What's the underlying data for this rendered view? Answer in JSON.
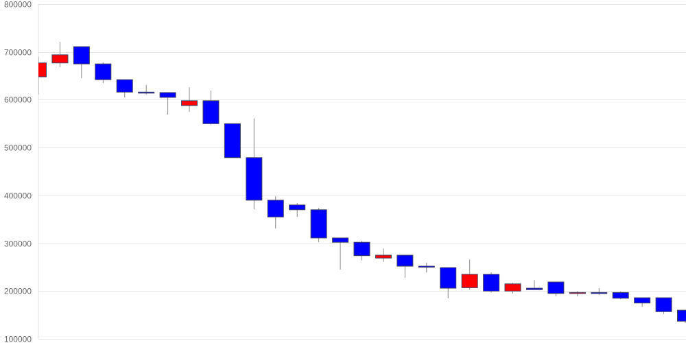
{
  "chart_data": {
    "type": "candlestick",
    "title": "",
    "xlabel": "",
    "ylabel": "",
    "ylim": [
      100000,
      800000
    ],
    "yticks": [
      "100000",
      "200000",
      "300000",
      "400000",
      "500000",
      "600000",
      "700000",
      "800000"
    ],
    "grid": true,
    "colors": {
      "up": "#ff0000",
      "down": "#0000ff",
      "wick": "#888888",
      "grid": "#e6e6e6"
    },
    "candles": [
      {
        "o": 648000,
        "h": 690000,
        "l": 611000,
        "c": 677000
      },
      {
        "o": 677000,
        "h": 721000,
        "l": 668000,
        "c": 694000
      },
      {
        "o": 711000,
        "h": 711000,
        "l": 645000,
        "c": 675000
      },
      {
        "o": 675000,
        "h": 678000,
        "l": 635000,
        "c": 642000
      },
      {
        "o": 642000,
        "h": 642000,
        "l": 605000,
        "c": 616000
      },
      {
        "o": 616000,
        "h": 631000,
        "l": 611000,
        "c": 614000
      },
      {
        "o": 615000,
        "h": 615000,
        "l": 569000,
        "c": 605000
      },
      {
        "o": 588000,
        "h": 626000,
        "l": 575000,
        "c": 598000
      },
      {
        "o": 598000,
        "h": 619000,
        "l": 548000,
        "c": 550000
      },
      {
        "o": 550000,
        "h": 550000,
        "l": 479000,
        "c": 479000
      },
      {
        "o": 479000,
        "h": 561000,
        "l": 371000,
        "c": 390000
      },
      {
        "o": 390000,
        "h": 398000,
        "l": 331000,
        "c": 355000
      },
      {
        "o": 380000,
        "h": 384000,
        "l": 355000,
        "c": 370000
      },
      {
        "o": 370000,
        "h": 374000,
        "l": 302000,
        "c": 311000
      },
      {
        "o": 311000,
        "h": 311000,
        "l": 245000,
        "c": 302000
      },
      {
        "o": 302000,
        "h": 305000,
        "l": 264000,
        "c": 274000
      },
      {
        "o": 269000,
        "h": 289000,
        "l": 261000,
        "c": 275000
      },
      {
        "o": 275000,
        "h": 275000,
        "l": 228000,
        "c": 252000
      },
      {
        "o": 252000,
        "h": 259000,
        "l": 239000,
        "c": 250000
      },
      {
        "o": 249000,
        "h": 249000,
        "l": 185000,
        "c": 206000
      },
      {
        "o": 207000,
        "h": 266000,
        "l": 203000,
        "c": 235000
      },
      {
        "o": 235000,
        "h": 239000,
        "l": 197000,
        "c": 200000
      },
      {
        "o": 200000,
        "h": 217000,
        "l": 195000,
        "c": 215000
      },
      {
        "o": 206000,
        "h": 223000,
        "l": 203000,
        "c": 203000
      },
      {
        "o": 219000,
        "h": 219000,
        "l": 189000,
        "c": 195000
      },
      {
        "o": 195000,
        "h": 200000,
        "l": 189000,
        "c": 197000
      },
      {
        "o": 197000,
        "h": 206000,
        "l": 192000,
        "c": 196000
      },
      {
        "o": 197000,
        "h": 199000,
        "l": 183000,
        "c": 185000
      },
      {
        "o": 186000,
        "h": 186000,
        "l": 167000,
        "c": 175000
      },
      {
        "o": 186000,
        "h": 186000,
        "l": 152000,
        "c": 157000
      },
      {
        "o": 160000,
        "h": 160000,
        "l": 133000,
        "c": 137000
      }
    ]
  }
}
